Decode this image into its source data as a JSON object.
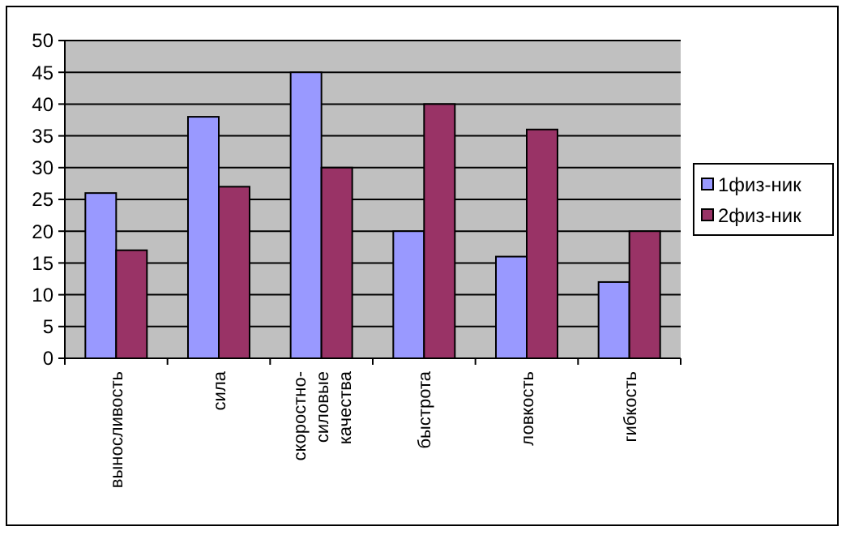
{
  "chart_data": {
    "type": "bar",
    "categories": [
      "выносливость",
      "сила",
      "скоростно-силовые качества",
      "быстрота",
      "ловкость",
      "гибкость"
    ],
    "series": [
      {
        "name": "1физ-ник",
        "color": "#9999ff",
        "values": [
          26,
          38,
          45,
          20,
          16,
          12
        ]
      },
      {
        "name": "2физ-ник",
        "color": "#993366",
        "values": [
          17,
          27,
          30,
          40,
          36,
          20
        ]
      }
    ],
    "ylim": [
      0,
      50
    ],
    "yticks": [
      0,
      5,
      10,
      15,
      20,
      25,
      30,
      35,
      40,
      45,
      50
    ],
    "grid": "y",
    "legend": "right"
  }
}
